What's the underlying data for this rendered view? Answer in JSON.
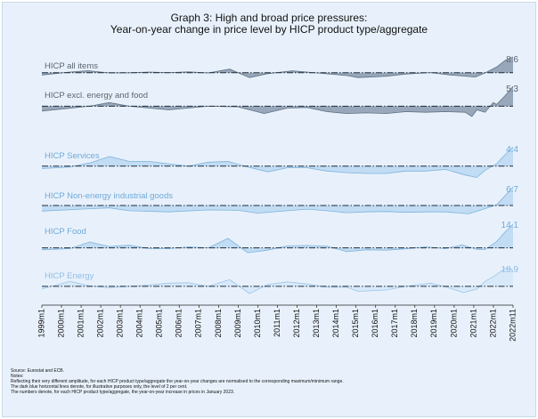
{
  "chart_data": {
    "type": "area",
    "title": "Graph 3: High and broad price pressures:",
    "subtitle": "Year-on-year change in price level by HICP product type/aggregate",
    "x_ticks": [
      "1999m1",
      "2000m1",
      "2001m1",
      "2002m1",
      "2003m1",
      "2004m1",
      "2005m1",
      "2006m1",
      "2007m1",
      "2008m1",
      "2009m1",
      "2010m1",
      "2011m1",
      "2012m1",
      "2013m1",
      "2014m1",
      "2015m1",
      "2016m1",
      "2017m1",
      "2018m1",
      "2019m1",
      "2020m1",
      "2021m1",
      "2022m1",
      "2022m11"
    ],
    "x_range": [
      "1999-01",
      "2022-11"
    ],
    "target_line": 2,
    "series": [
      {
        "name": "HICP all items",
        "end_label": "8.6",
        "fill": "#8fa0b3",
        "stroke": "#5f7185",
        "label_color": "#5b6470",
        "range": [
          -1,
          10.6
        ],
        "points": [
          [
            "1999-01",
            0.8
          ],
          [
            "2000-06",
            2.4
          ],
          [
            "2001-05",
            3.1
          ],
          [
            "2002-06",
            1.9
          ],
          [
            "2003-06",
            2.0
          ],
          [
            "2004-06",
            2.4
          ],
          [
            "2005-06",
            2.1
          ],
          [
            "2006-06",
            2.5
          ],
          [
            "2007-06",
            1.9
          ],
          [
            "2008-07",
            4.0
          ],
          [
            "2009-07",
            -0.6
          ],
          [
            "2010-06",
            1.5
          ],
          [
            "2011-09",
            3.0
          ],
          [
            "2012-06",
            2.4
          ],
          [
            "2013-06",
            1.4
          ],
          [
            "2014-06",
            0.5
          ],
          [
            "2015-01",
            -0.6
          ],
          [
            "2016-06",
            0.1
          ],
          [
            "2017-06",
            1.3
          ],
          [
            "2018-09",
            2.1
          ],
          [
            "2019-09",
            0.8
          ],
          [
            "2020-12",
            -0.3
          ],
          [
            "2021-06",
            1.9
          ],
          [
            "2022-01",
            5.1
          ],
          [
            "2022-06",
            8.6
          ],
          [
            "2022-11",
            10.6
          ]
        ]
      },
      {
        "name": "HICP excl. energy and food",
        "end_label": "5.3",
        "fill": "#8fa0b3",
        "stroke": "#5f7185",
        "label_color": "#5b6470",
        "range": [
          0,
          5.3
        ],
        "points": [
          [
            "1999-01",
            1.2
          ],
          [
            "2001-06",
            2.0
          ],
          [
            "2002-06",
            2.6
          ],
          [
            "2003-06",
            2.0
          ],
          [
            "2005-06",
            1.4
          ],
          [
            "2007-06",
            2.0
          ],
          [
            "2008-12",
            1.9
          ],
          [
            "2010-04",
            0.8
          ],
          [
            "2011-06",
            1.7
          ],
          [
            "2012-06",
            1.8
          ],
          [
            "2013-06",
            1.1
          ],
          [
            "2014-06",
            0.8
          ],
          [
            "2015-06",
            0.9
          ],
          [
            "2016-06",
            0.8
          ],
          [
            "2017-06",
            1.1
          ],
          [
            "2018-06",
            1.0
          ],
          [
            "2019-06",
            1.1
          ],
          [
            "2020-06",
            1.0
          ],
          [
            "2020-10",
            0.3
          ],
          [
            "2021-01",
            1.4
          ],
          [
            "2021-06",
            1.0
          ],
          [
            "2021-11",
            2.6
          ],
          [
            "2022-01",
            2.3
          ],
          [
            "2022-06",
            3.7
          ],
          [
            "2022-11",
            5.3
          ]
        ]
      },
      {
        "name": "HICP Services",
        "end_label": "4.4",
        "fill": "#bcd9f2",
        "stroke": "#7fb3dd",
        "label_color": "#6fa9d9",
        "range": [
          0,
          4.4
        ],
        "points": [
          [
            "1999-01",
            1.7
          ],
          [
            "2000-06",
            1.9
          ],
          [
            "2001-06",
            2.4
          ],
          [
            "2002-06",
            3.2
          ],
          [
            "2003-06",
            2.6
          ],
          [
            "2004-06",
            2.6
          ],
          [
            "2005-06",
            2.3
          ],
          [
            "2006-06",
            2.0
          ],
          [
            "2007-06",
            2.5
          ],
          [
            "2008-06",
            2.6
          ],
          [
            "2009-06",
            1.9
          ],
          [
            "2010-06",
            1.3
          ],
          [
            "2011-06",
            1.8
          ],
          [
            "2012-06",
            1.8
          ],
          [
            "2013-06",
            1.4
          ],
          [
            "2014-06",
            1.2
          ],
          [
            "2015-06",
            1.1
          ],
          [
            "2016-06",
            1.1
          ],
          [
            "2017-06",
            1.4
          ],
          [
            "2018-06",
            1.4
          ],
          [
            "2019-06",
            1.6
          ],
          [
            "2020-06",
            0.9
          ],
          [
            "2021-01",
            0.6
          ],
          [
            "2021-06",
            1.5
          ],
          [
            "2022-01",
            2.3
          ],
          [
            "2022-06",
            3.4
          ],
          [
            "2022-11",
            4.4
          ]
        ]
      },
      {
        "name": "HICP Non-energy industrial goods",
        "end_label": "6.7",
        "fill": "#bcd9f2",
        "stroke": "#7fb3dd",
        "label_color": "#6fa9d9",
        "range": [
          0,
          6.7
        ],
        "points": [
          [
            "1999-01",
            0.6
          ],
          [
            "2001-06",
            1.2
          ],
          [
            "2002-06",
            1.4
          ],
          [
            "2003-06",
            0.7
          ],
          [
            "2005-06",
            0.4
          ],
          [
            "2007-06",
            0.9
          ],
          [
            "2008-12",
            0.8
          ],
          [
            "2009-12",
            0.1
          ],
          [
            "2011-06",
            0.7
          ],
          [
            "2012-06",
            1.1
          ],
          [
            "2013-06",
            0.7
          ],
          [
            "2014-06",
            0.2
          ],
          [
            "2015-06",
            0.4
          ],
          [
            "2016-06",
            0.5
          ],
          [
            "2017-06",
            0.3
          ],
          [
            "2018-06",
            0.4
          ],
          [
            "2019-06",
            0.4
          ],
          [
            "2020-08",
            -0.1
          ],
          [
            "2021-06",
            1.2
          ],
          [
            "2022-01",
            2.2
          ],
          [
            "2022-06",
            4.4
          ],
          [
            "2022-11",
            6.7
          ]
        ]
      },
      {
        "name": "HICP Food",
        "end_label": "14.1",
        "fill": "#bcd9f2",
        "stroke": "#7fb3dd",
        "label_color": "#6fa9d9",
        "range": [
          0,
          15
        ],
        "points": [
          [
            "1999-01",
            1.0
          ],
          [
            "2000-06",
            1.6
          ],
          [
            "2001-06",
            5.0
          ],
          [
            "2002-06",
            2.7
          ],
          [
            "2003-06",
            3.3
          ],
          [
            "2004-06",
            1.7
          ],
          [
            "2005-06",
            1.6
          ],
          [
            "2006-06",
            2.5
          ],
          [
            "2007-06",
            2.0
          ],
          [
            "2008-06",
            6.8
          ],
          [
            "2009-06",
            -0.5
          ],
          [
            "2010-06",
            0.8
          ],
          [
            "2011-06",
            3.0
          ],
          [
            "2012-06",
            3.2
          ],
          [
            "2013-06",
            2.9
          ],
          [
            "2014-06",
            0.1
          ],
          [
            "2015-06",
            1.0
          ],
          [
            "2016-06",
            0.8
          ],
          [
            "2017-06",
            1.5
          ],
          [
            "2018-06",
            2.5
          ],
          [
            "2019-06",
            1.6
          ],
          [
            "2020-04",
            3.5
          ],
          [
            "2021-01",
            1.2
          ],
          [
            "2021-06",
            1.2
          ],
          [
            "2022-01",
            5.2
          ],
          [
            "2022-06",
            10.0
          ],
          [
            "2022-11",
            14.1
          ]
        ]
      },
      {
        "name": "HICP Energy",
        "end_label": "18.9",
        "fill": "#d6e8f8",
        "stroke": "#9cc6ea",
        "label_color": "#8fbde6",
        "range": [
          -10,
          45
        ],
        "points": [
          [
            "1999-01",
            -4
          ],
          [
            "2000-06",
            13
          ],
          [
            "2001-06",
            3
          ],
          [
            "2002-06",
            -1
          ],
          [
            "2003-06",
            2
          ],
          [
            "2004-06",
            5
          ],
          [
            "2005-06",
            9
          ],
          [
            "2006-06",
            10
          ],
          [
            "2007-06",
            2
          ],
          [
            "2008-07",
            17
          ],
          [
            "2009-07",
            -14
          ],
          [
            "2010-06",
            6
          ],
          [
            "2011-06",
            12
          ],
          [
            "2012-06",
            7
          ],
          [
            "2013-06",
            0
          ],
          [
            "2014-06",
            0
          ],
          [
            "2015-01",
            -9
          ],
          [
            "2016-06",
            -6
          ],
          [
            "2017-06",
            2
          ],
          [
            "2018-09",
            9
          ],
          [
            "2019-06",
            1
          ],
          [
            "2020-05",
            -12
          ],
          [
            "2021-01",
            -4
          ],
          [
            "2021-06",
            13
          ],
          [
            "2022-01",
            28
          ],
          [
            "2022-06",
            42
          ],
          [
            "2022-10",
            40
          ],
          [
            "2022-11",
            35
          ]
        ]
      }
    ]
  },
  "notes": {
    "source": "Source: Eurostat and ECB.",
    "heading": "Notes:",
    "line1": "Reflecting their very different amplitude, for each HICP product type/aggregate the year-on-year changes are normalised to the corresponding maximum/minimum range.",
    "line2": "The dark blue horizontal lines denote, for illustrative purposes only, the level of 2 per cent.",
    "line3": "The numbers denote, for each HICP product type/aggregate, the year-on-year increase in prices in January 2023."
  }
}
